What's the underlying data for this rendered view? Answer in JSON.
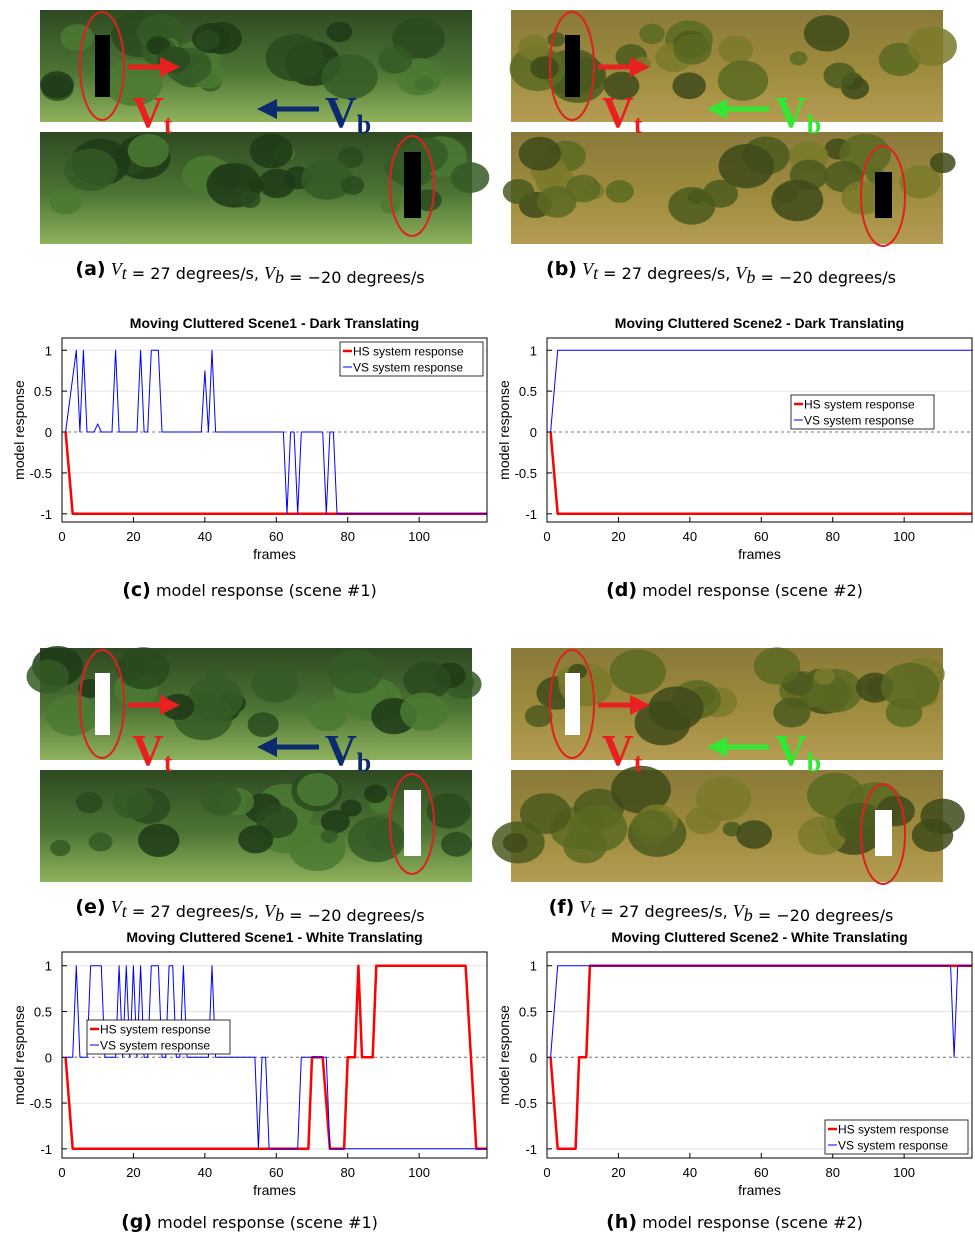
{
  "photo_panels": [
    {
      "label": "(a)",
      "caption": [
        {
          "text": "V",
          "sub": "t"
        },
        {
          "text": " = 27 degrees/s, "
        },
        {
          "text": "V",
          "sub": "b"
        },
        {
          "text": " = −20 degrees/s"
        }
      ],
      "target_label": {
        "text": "V",
        "sub": "t"
      },
      "background_label": {
        "text": "V",
        "sub": "b"
      }
    },
    {
      "label": "(b)",
      "caption": [
        {
          "text": "V",
          "sub": "t"
        },
        {
          "text": " = 27 degrees/s, "
        },
        {
          "text": "V",
          "sub": "b"
        },
        {
          "text": " = −20 degrees/s"
        }
      ],
      "target_label": {
        "text": "V",
        "sub": "t"
      },
      "background_label": {
        "text": "V",
        "sub": "b"
      }
    },
    {
      "label": "(e)",
      "caption": [
        {
          "text": "V",
          "sub": "t"
        },
        {
          "text": " = 27 degrees/s, "
        },
        {
          "text": "V",
          "sub": "b"
        },
        {
          "text": " = −20 degrees/s"
        }
      ],
      "target_label": {
        "text": "V",
        "sub": "t"
      },
      "background_label": {
        "text": "V",
        "sub": "b"
      }
    },
    {
      "label": "(f)",
      "caption": [
        {
          "text": "V",
          "sub": "t"
        },
        {
          "text": " = 27 degrees/s, "
        },
        {
          "text": "V",
          "sub": "b"
        },
        {
          "text": " = −20 degrees/s"
        }
      ],
      "target_label": {
        "text": "V",
        "sub": "t"
      },
      "background_label": {
        "text": "V",
        "sub": "b"
      }
    }
  ],
  "chart_panels": [
    {
      "label": "(c)",
      "caption": "model response (scene #1)"
    },
    {
      "label": "(d)",
      "caption": "model response (scene #2)"
    },
    {
      "label": "(g)",
      "caption": "model response (scene #1)"
    },
    {
      "label": "(h)",
      "caption": "model response (scene #2)"
    }
  ],
  "chart_data": [
    {
      "type": "line",
      "title": "Moving Cluttered Scene1 - Dark Translating",
      "x_label": "frames",
      "y_label": "model response",
      "xlim": [
        0,
        119
      ],
      "xticks": [
        0,
        20,
        40,
        60,
        80,
        100
      ],
      "ylim": [
        -1.1,
        1.15
      ],
      "yticks": [
        -1,
        -0.5,
        0,
        0.5,
        1
      ],
      "grid": "y",
      "legend": "upper right",
      "series": [
        {
          "name": "HS system response",
          "color": "#ff0000",
          "line_width": 2.5,
          "x": [
            1,
            3,
            119
          ],
          "values": [
            0,
            -1,
            -1
          ]
        },
        {
          "name": "VS system response",
          "color": "#0000ff",
          "line_width": 1,
          "x": [
            1,
            4,
            5,
            6,
            7,
            9,
            10,
            11,
            14,
            15,
            16,
            21,
            22,
            23,
            24,
            25,
            27,
            28,
            39,
            40,
            41,
            42,
            43,
            62,
            63,
            64,
            65,
            66,
            67,
            73,
            74,
            75,
            76,
            77,
            119
          ],
          "values": [
            0,
            1,
            0,
            1,
            0,
            0,
            0.1,
            0,
            0,
            1,
            0,
            0,
            1,
            0,
            0,
            1,
            1,
            0,
            0,
            0.75,
            0,
            1,
            0,
            0,
            -1,
            0,
            0,
            -1,
            0,
            0,
            -1,
            0,
            0,
            -1,
            -1
          ]
        }
      ]
    },
    {
      "type": "line",
      "title": "Moving Cluttered Scene2 - Dark Translating",
      "x_label": "frames",
      "y_label": "model response",
      "xlim": [
        0,
        119
      ],
      "xticks": [
        0,
        20,
        40,
        60,
        80,
        100
      ],
      "ylim": [
        -1.1,
        1.15
      ],
      "yticks": [
        -1,
        -0.5,
        0,
        0.5,
        1
      ],
      "grid": "y",
      "legend": "center right",
      "series": [
        {
          "name": "HS system response",
          "color": "#ff0000",
          "line_width": 2.5,
          "x": [
            1,
            3,
            119
          ],
          "values": [
            0,
            -1,
            -1
          ]
        },
        {
          "name": "VS system response",
          "color": "#0000ff",
          "line_width": 1,
          "x": [
            1,
            3,
            119
          ],
          "values": [
            0,
            1,
            1
          ]
        }
      ]
    },
    {
      "type": "line",
      "title": "Moving Cluttered Scene1 - White Translating",
      "x_label": "frames",
      "y_label": "model response",
      "xlim": [
        0,
        119
      ],
      "xticks": [
        0,
        20,
        40,
        60,
        80,
        100
      ],
      "ylim": [
        -1.1,
        1.15
      ],
      "yticks": [
        -1,
        -0.5,
        0,
        0.5,
        1
      ],
      "grid": "y",
      "legend": "center left",
      "series": [
        {
          "name": "HS system response",
          "color": "#ff0000",
          "line_width": 2.5,
          "x": [
            1,
            3,
            69,
            70,
            73,
            75,
            79,
            80,
            82,
            83,
            84,
            87,
            88,
            113,
            116,
            119
          ],
          "values": [
            0,
            -1,
            -1,
            0,
            0,
            -1,
            -1,
            0,
            0,
            1,
            0,
            0,
            1,
            1,
            -1,
            -1
          ]
        },
        {
          "name": "VS system response",
          "color": "#0000ff",
          "line_width": 1,
          "x": [
            1,
            3,
            4,
            5,
            7,
            8,
            11,
            12,
            15,
            16,
            17,
            18,
            19,
            20,
            21,
            22,
            23,
            24,
            25,
            27,
            28,
            29,
            30,
            31,
            32,
            33,
            34,
            35,
            41,
            42,
            43,
            54,
            55,
            56,
            57,
            58,
            66,
            67,
            74,
            75,
            119
          ],
          "values": [
            0,
            0,
            1,
            0,
            0,
            1,
            1,
            0,
            0,
            1,
            0,
            1,
            0,
            1,
            0,
            1,
            0,
            0,
            1,
            1,
            0,
            0,
            1,
            1,
            0,
            0,
            1,
            0,
            0,
            1,
            0,
            0,
            -1,
            0,
            0,
            -1,
            -1,
            0,
            0,
            -1,
            -1
          ]
        }
      ]
    },
    {
      "type": "line",
      "title": "Moving Cluttered Scene2 - White Translating",
      "x_label": "frames",
      "y_label": "model response",
      "xlim": [
        0,
        119
      ],
      "xticks": [
        0,
        20,
        40,
        60,
        80,
        100
      ],
      "ylim": [
        -1.1,
        1.15
      ],
      "yticks": [
        -1,
        -0.5,
        0,
        0.5,
        1
      ],
      "grid": "y",
      "legend": "lower right",
      "series": [
        {
          "name": "HS system response",
          "color": "#ff0000",
          "line_width": 2.5,
          "x": [
            1,
            3,
            8,
            9,
            11,
            12,
            119
          ],
          "values": [
            0,
            -1,
            -1,
            0,
            0,
            1,
            1
          ]
        },
        {
          "name": "VS system response",
          "color": "#0000ff",
          "line_width": 1,
          "x": [
            1,
            3,
            113,
            114,
            115,
            119
          ],
          "values": [
            0,
            1,
            1,
            0,
            1,
            1
          ]
        }
      ]
    }
  ]
}
